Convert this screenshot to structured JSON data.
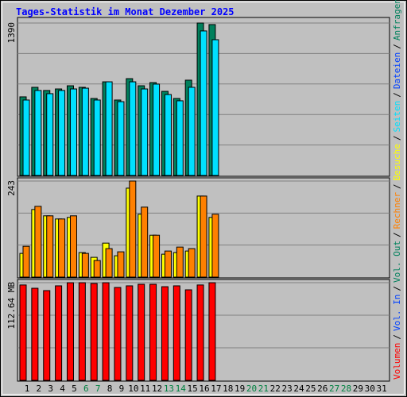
{
  "chart_data": {
    "type": "bar",
    "title": "Tages-Statistik im Monat Dezember 2025",
    "separator": "/",
    "categories": [
      "1",
      "2",
      "3",
      "4",
      "5",
      "6",
      "7",
      "8",
      "9",
      "10",
      "11",
      "12",
      "13",
      "14",
      "15",
      "16",
      "17",
      "18",
      "19",
      "20",
      "21",
      "22",
      "23",
      "24",
      "25",
      "26",
      "27",
      "28",
      "29",
      "30",
      "31"
    ],
    "category_colors": [
      "#000000",
      "#000000",
      "#000000",
      "#000000",
      "#000000",
      "#008040",
      "#008040",
      "#000000",
      "#000000",
      "#000000",
      "#000000",
      "#000000",
      "#008040",
      "#008040",
      "#000000",
      "#000000",
      "#000000",
      "#000000",
      "#000000",
      "#008040",
      "#008040",
      "#000000",
      "#000000",
      "#000000",
      "#000000",
      "#000000",
      "#008040",
      "#008040",
      "#000000",
      "#000000",
      "#000000"
    ],
    "panels": [
      {
        "ylim": [
          0,
          1390
        ],
        "yticks": [
          1390
        ],
        "series": [
          {
            "name": "Anfragen",
            "color": "#00805c",
            "values": [
              717,
              804,
              775,
              789,
              818,
              804,
              702,
              854,
              688,
              883,
              818,
              847,
              767,
              702,
              869,
              1390,
              1376,
              null,
              null,
              null,
              null,
              null,
              null,
              null,
              null,
              null,
              null,
              null,
              null,
              null,
              null
            ]
          },
          {
            "name": "Dateien",
            "color": "#0040ff",
            "values": [
              null,
              null,
              null,
              null,
              null,
              null,
              null,
              null,
              null,
              null,
              null,
              null,
              null,
              null,
              null,
              null,
              null,
              null,
              null,
              null,
              null,
              null,
              null,
              null,
              null,
              null,
              null,
              null,
              null,
              null,
              null
            ]
          },
          {
            "name": "Seiten",
            "color": "#00e0ff",
            "values": [
              688,
              775,
              746,
              775,
              789,
              796,
              688,
              854,
              673,
              854,
              789,
              833,
              738,
              681,
              804,
              1318,
              1238,
              null,
              null,
              null,
              null,
              null,
              null,
              null,
              null,
              null,
              null,
              null,
              null,
              null,
              null
            ]
          }
        ]
      },
      {
        "ylim": [
          0,
          243
        ],
        "yticks": [
          243
        ],
        "series": [
          {
            "name": "Besuche",
            "color": "#ffff00",
            "values": [
              60,
              171,
              155,
              147,
              151,
              62,
              50,
              86,
              54,
              225,
              159,
              106,
              58,
              62,
              66,
              205,
              151,
              null,
              null,
              null,
              null,
              null,
              null,
              null,
              null,
              null,
              null,
              null,
              null,
              null,
              null
            ]
          },
          {
            "name": "Rechner",
            "color": "#ff8000",
            "values": [
              78,
              179,
              155,
              147,
              155,
              60,
              42,
              72,
              64,
              243,
              177,
              106,
              66,
              76,
              72,
              205,
              159,
              null,
              null,
              null,
              null,
              null,
              null,
              null,
              null,
              null,
              null,
              null,
              null,
              null,
              null
            ]
          }
        ]
      },
      {
        "ylim": [
          0,
          112.64
        ],
        "yticks": [
          {
            "value": 112.64,
            "label": "112.64 MB"
          }
        ],
        "series": [
          {
            "name": "Vol. Out",
            "color": "#00805c",
            "values": [
              null,
              null,
              null,
              null,
              null,
              null,
              null,
              null,
              null,
              null,
              null,
              null,
              null,
              null,
              null,
              null,
              null,
              null,
              null,
              null,
              null,
              null,
              null,
              null,
              null,
              null,
              null,
              null,
              null,
              null,
              null
            ]
          },
          {
            "name": "Vol. In",
            "color": "#0040ff",
            "values": [
              null,
              null,
              null,
              null,
              null,
              null,
              null,
              null,
              null,
              null,
              null,
              null,
              null,
              null,
              null,
              null,
              null,
              null,
              null,
              null,
              null,
              null,
              null,
              null,
              null,
              null,
              null,
              null,
              null,
              null,
              null
            ]
          },
          {
            "name": "Volumen",
            "color": "#ff0000",
            "values": [
              110,
              106.2,
              103.5,
              109,
              112.6,
              112.6,
              111.7,
              112.6,
              107.1,
              109,
              110.8,
              110.8,
              108,
              109,
              104.4,
              110,
              112.6,
              null,
              null,
              null,
              null,
              null,
              null,
              null,
              null,
              null,
              null,
              null,
              null,
              null,
              null
            ]
          }
        ]
      }
    ]
  }
}
